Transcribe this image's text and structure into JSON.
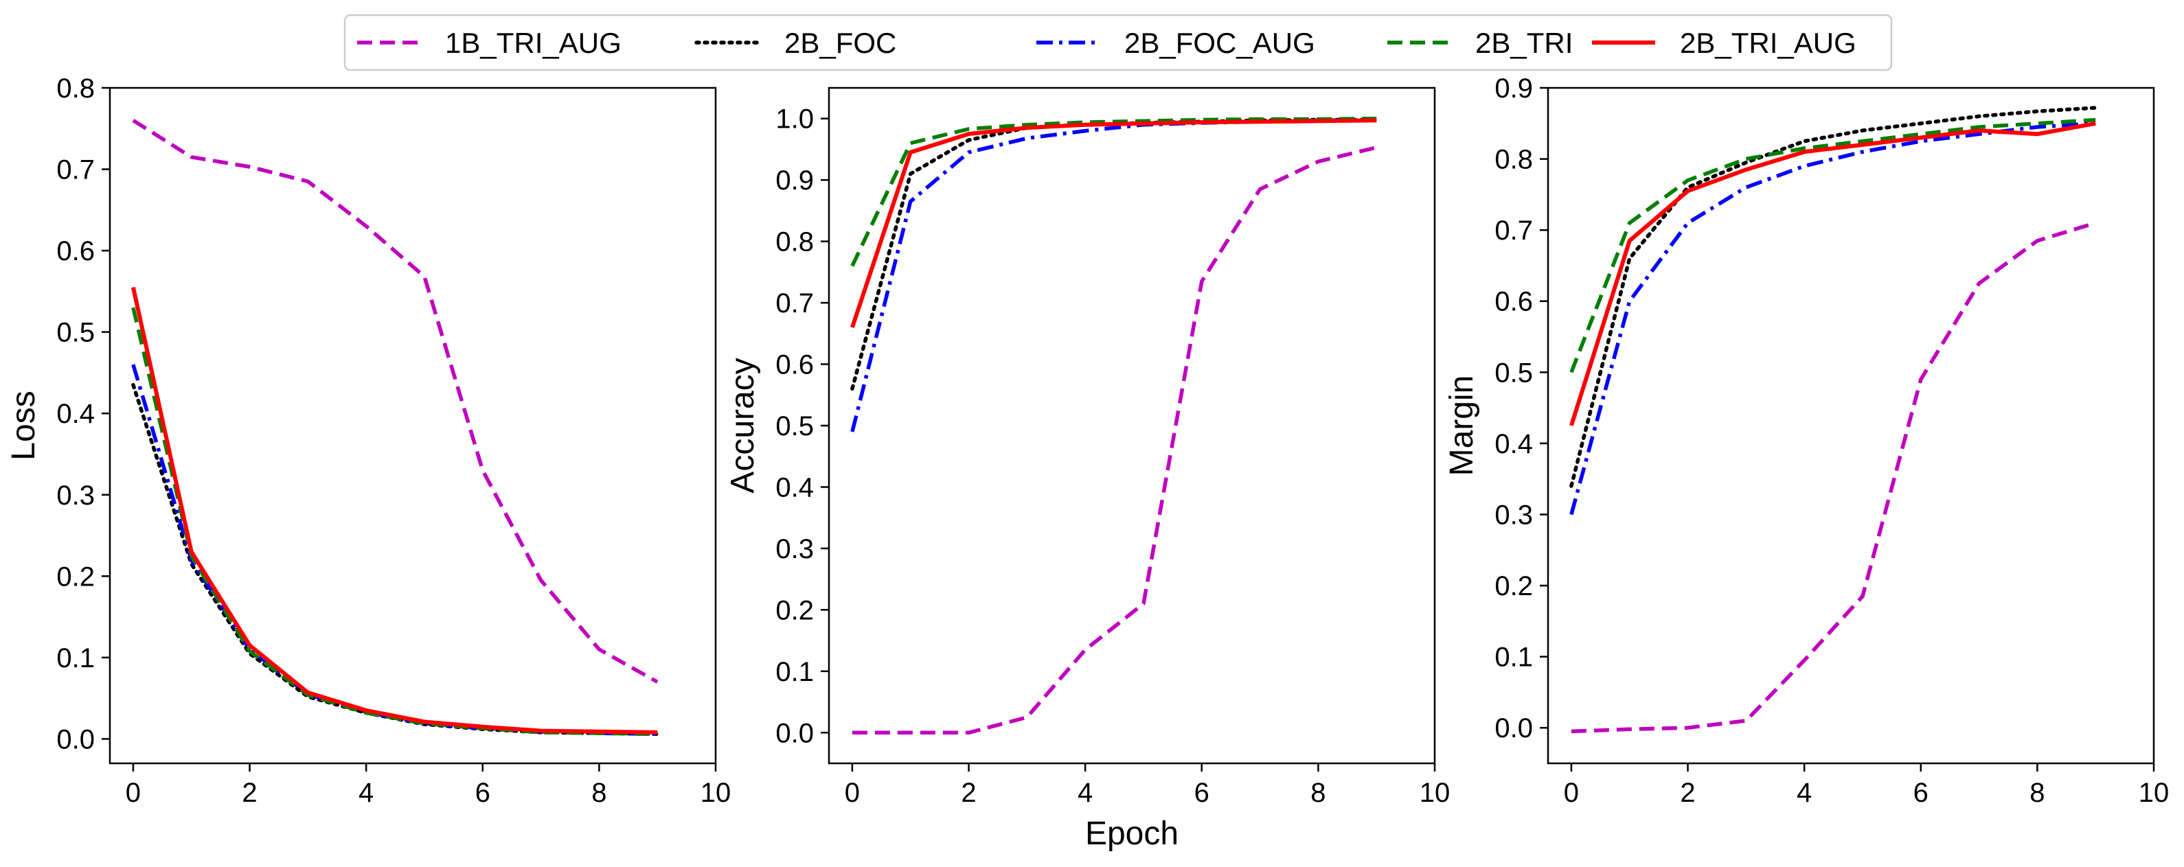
{
  "chart_data": {
    "type": "line",
    "legend": {
      "placement": "top-center",
      "entries": [
        {
          "name": "1B_TRI_AUG",
          "color": "#bf00bf",
          "style": "dashed"
        },
        {
          "name": "2B_FOC",
          "color": "#000000",
          "style": "dotted"
        },
        {
          "name": "2B_FOC_AUG",
          "color": "#0000ff",
          "style": "dashdot"
        },
        {
          "name": "2B_TRI",
          "color": "#007f00",
          "style": "dashed"
        },
        {
          "name": "2B_TRI_AUG",
          "color": "#ff0000",
          "style": "solid"
        }
      ]
    },
    "shared_xlabel": "Epoch",
    "panels": [
      {
        "id": "loss",
        "ylabel": "Loss",
        "xlim": [
          -0.4,
          10
        ],
        "ylim": [
          -0.03,
          0.8
        ],
        "xticks": [
          "0",
          "2",
          "4",
          "6",
          "8",
          "10"
        ],
        "yticks": [
          "0.0",
          "0.1",
          "0.2",
          "0.3",
          "0.4",
          "0.5",
          "0.6",
          "0.7",
          "0.8"
        ],
        "x": [
          0,
          1,
          2,
          3,
          4,
          5,
          6,
          7,
          8,
          9
        ],
        "series": [
          {
            "name": "1B_TRI_AUG",
            "values": [
              0.76,
              0.715,
              0.703,
              0.685,
              0.63,
              0.568,
              0.33,
              0.195,
              0.11,
              0.07
            ]
          },
          {
            "name": "2B_FOC",
            "values": [
              0.435,
              0.215,
              0.105,
              0.052,
              0.032,
              0.018,
              0.012,
              0.008,
              0.007,
              0.006
            ]
          },
          {
            "name": "2B_FOC_AUG",
            "values": [
              0.46,
              0.22,
              0.11,
              0.055,
              0.033,
              0.019,
              0.013,
              0.009,
              0.007,
              0.006
            ]
          },
          {
            "name": "2B_TRI",
            "values": [
              0.53,
              0.225,
              0.108,
              0.054,
              0.032,
              0.019,
              0.013,
              0.008,
              0.007,
              0.006
            ]
          },
          {
            "name": "2B_TRI_AUG",
            "values": [
              0.555,
              0.23,
              0.115,
              0.057,
              0.035,
              0.021,
              0.015,
              0.01,
              0.009,
              0.008
            ]
          }
        ]
      },
      {
        "id": "accuracy",
        "ylabel": "Accuracy",
        "xlim": [
          -0.4,
          10
        ],
        "ylim": [
          -0.05,
          1.05
        ],
        "xticks": [
          "0",
          "2",
          "4",
          "6",
          "8",
          "10"
        ],
        "yticks": [
          "0.0",
          "0.1",
          "0.2",
          "0.3",
          "0.4",
          "0.5",
          "0.6",
          "0.7",
          "0.8",
          "0.9",
          "1.0"
        ],
        "x": [
          0,
          1,
          2,
          3,
          4,
          5,
          6,
          7,
          8,
          9
        ],
        "series": [
          {
            "name": "1B_TRI_AUG",
            "values": [
              0.0,
              0.0,
              0.0,
              0.025,
              0.135,
              0.21,
              0.735,
              0.885,
              0.93,
              0.953
            ]
          },
          {
            "name": "2B_FOC",
            "values": [
              0.56,
              0.91,
              0.965,
              0.985,
              0.99,
              0.993,
              0.995,
              0.997,
              0.998,
              0.998
            ]
          },
          {
            "name": "2B_FOC_AUG",
            "values": [
              0.49,
              0.865,
              0.945,
              0.968,
              0.98,
              0.99,
              0.993,
              0.995,
              0.997,
              0.998
            ]
          },
          {
            "name": "2B_TRI",
            "values": [
              0.76,
              0.96,
              0.983,
              0.99,
              0.994,
              0.996,
              0.998,
              0.999,
              0.999,
              1.0
            ]
          },
          {
            "name": "2B_TRI_AUG",
            "values": [
              0.66,
              0.945,
              0.975,
              0.985,
              0.99,
              0.992,
              0.994,
              0.995,
              0.996,
              0.997
            ]
          }
        ]
      },
      {
        "id": "margin",
        "ylabel": "Margin",
        "xlim": [
          -0.4,
          10
        ],
        "ylim": [
          -0.05,
          0.9
        ],
        "xticks": [
          "0",
          "2",
          "4",
          "6",
          "8",
          "10"
        ],
        "yticks": [
          "0.0",
          "0.1",
          "0.2",
          "0.3",
          "0.4",
          "0.5",
          "0.6",
          "0.7",
          "0.8",
          "0.9"
        ],
        "x": [
          0,
          1,
          2,
          3,
          4,
          5,
          6,
          7,
          8,
          9
        ],
        "series": [
          {
            "name": "1B_TRI_AUG",
            "values": [
              -0.005,
              -0.002,
              0.0,
              0.01,
              0.095,
              0.185,
              0.49,
              0.625,
              0.685,
              0.71
            ]
          },
          {
            "name": "2B_FOC",
            "values": [
              0.34,
              0.66,
              0.76,
              0.795,
              0.825,
              0.84,
              0.85,
              0.86,
              0.867,
              0.872
            ]
          },
          {
            "name": "2B_FOC_AUG",
            "values": [
              0.3,
              0.6,
              0.71,
              0.76,
              0.79,
              0.81,
              0.825,
              0.835,
              0.845,
              0.85
            ]
          },
          {
            "name": "2B_TRI",
            "values": [
              0.5,
              0.71,
              0.77,
              0.8,
              0.815,
              0.825,
              0.835,
              0.845,
              0.85,
              0.855
            ]
          },
          {
            "name": "2B_TRI_AUG",
            "values": [
              0.425,
              0.685,
              0.755,
              0.785,
              0.81,
              0.82,
              0.83,
              0.84,
              0.835,
              0.85
            ]
          }
        ]
      }
    ]
  }
}
